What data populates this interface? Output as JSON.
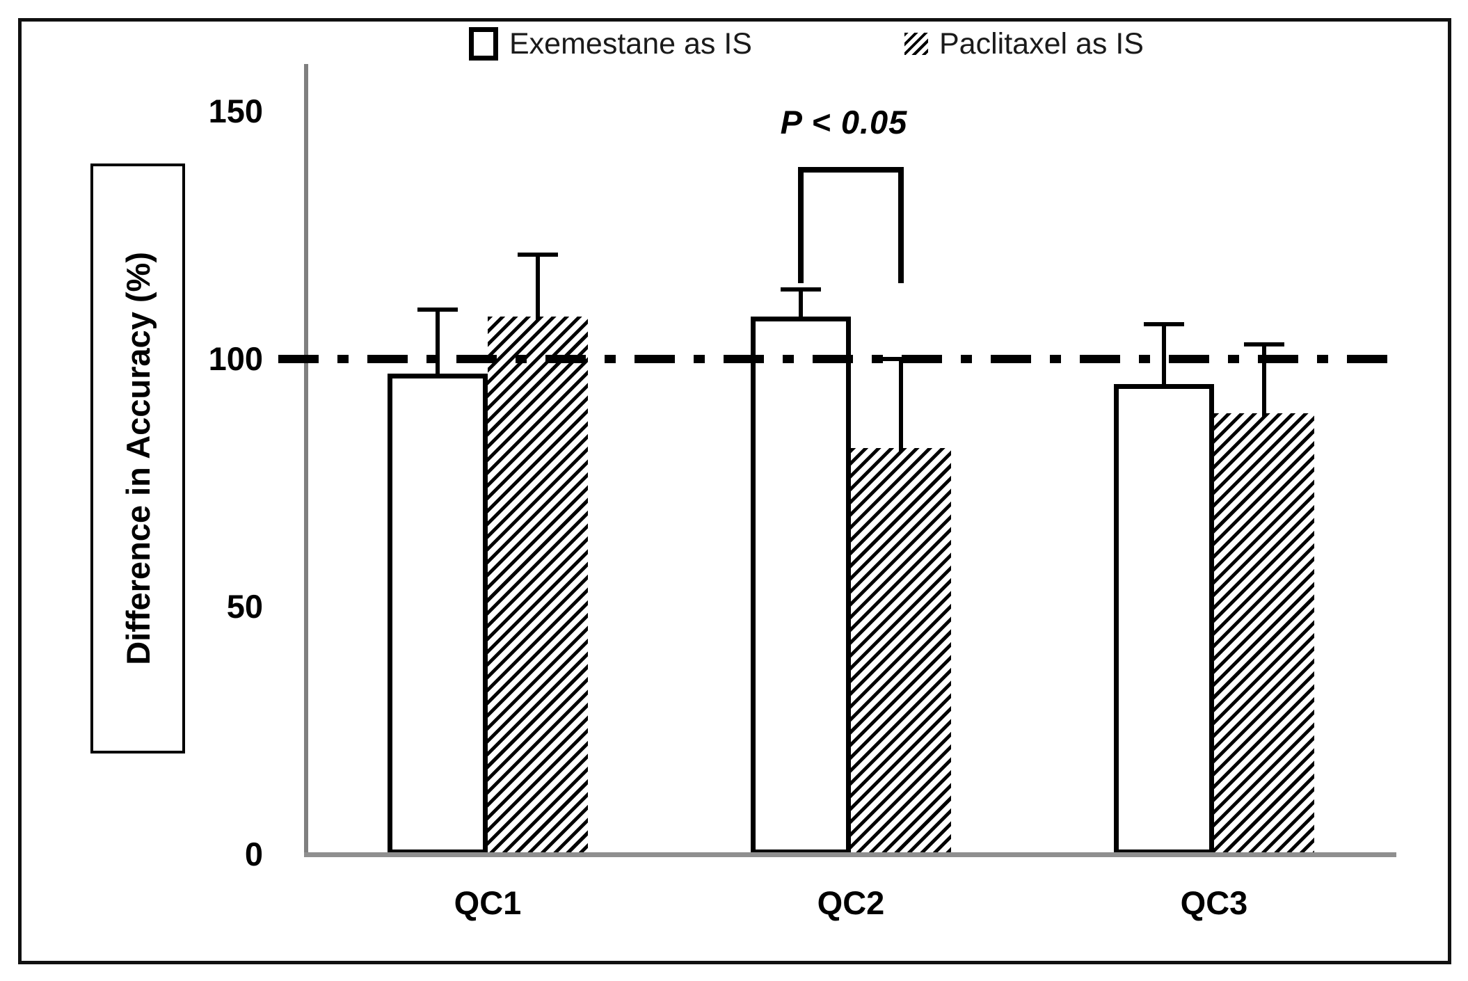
{
  "legend": {
    "items": [
      {
        "label": "Exemestane as IS",
        "marker": "open-square"
      },
      {
        "label": "Paclitaxel as IS",
        "marker": "hatched-square"
      }
    ]
  },
  "y_axis": {
    "title": "Difference in Accuracy (%)",
    "ticks": [
      "150",
      "100",
      "50",
      "0"
    ],
    "tick_values": [
      150,
      100,
      50,
      0
    ]
  },
  "chart_data": {
    "type": "bar",
    "title": "",
    "xlabel": "",
    "ylabel": "Difference in Accuracy (%)",
    "categories": [
      "QC1",
      "QC2",
      "QC3"
    ],
    "series": [
      {
        "name": "Exemestane as IS",
        "pattern": "open",
        "values": [
          97,
          108.5,
          95
        ],
        "errors_plus": [
          13,
          5.5,
          12
        ]
      },
      {
        "name": "Paclitaxel as IS",
        "pattern": "diagonal-hatch",
        "values": [
          108.5,
          82,
          89
        ],
        "errors_plus": [
          12.5,
          18,
          14
        ]
      }
    ],
    "ylim": [
      0,
      160
    ],
    "grid": false,
    "legend_position": "top-center",
    "reference_line_y": 100,
    "reference_line_style": "dash-dot",
    "annotation": "P < 0.05",
    "annotation_between": [
      "QC2 Exemestane as IS",
      "QC2 Paclitaxel as IS"
    ]
  },
  "colors": {
    "bar_fill": "#ffffff",
    "bar_border": "#000000",
    "hatch": "#000000",
    "axis_line": "#7f7f7f",
    "baseline": "#8f8f8f",
    "reference_line": "#000000",
    "text": "#000000"
  }
}
